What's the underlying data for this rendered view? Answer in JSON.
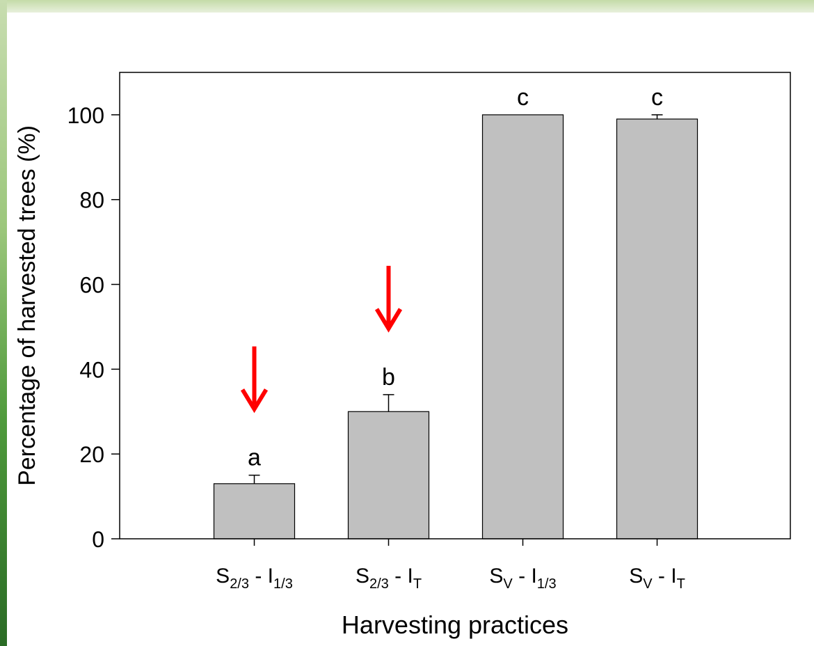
{
  "chart_data": {
    "type": "bar",
    "xlabel": "Harvesting practices",
    "ylabel": "Percentage of harvested trees (%)",
    "ylim": [
      0,
      110
    ],
    "yticks": [
      0,
      20,
      40,
      60,
      80,
      100
    ],
    "categories": [
      {
        "base": "S",
        "sub": "2/3",
        "sep": " - ",
        "base2": "I",
        "sub2": "1/3"
      },
      {
        "base": "S",
        "sub": "2/3",
        "sep": " - ",
        "base2": "I",
        "sub2": "T"
      },
      {
        "base": "S",
        "sub": "V",
        "sep": " - ",
        "base2": "I",
        "sub2": "1/3"
      },
      {
        "base": "S",
        "sub": "V",
        "sep": " - ",
        "base2": "I",
        "sub2": "T"
      }
    ],
    "values": [
      13,
      30,
      100,
      99
    ],
    "errors": [
      2,
      4,
      0,
      1
    ],
    "letters": [
      "a",
      "b",
      "c",
      "c"
    ],
    "highlighted": [
      0,
      1
    ],
    "grid": false,
    "bar_color": "#c0c0c0",
    "arrow_color": "#ff0000"
  }
}
